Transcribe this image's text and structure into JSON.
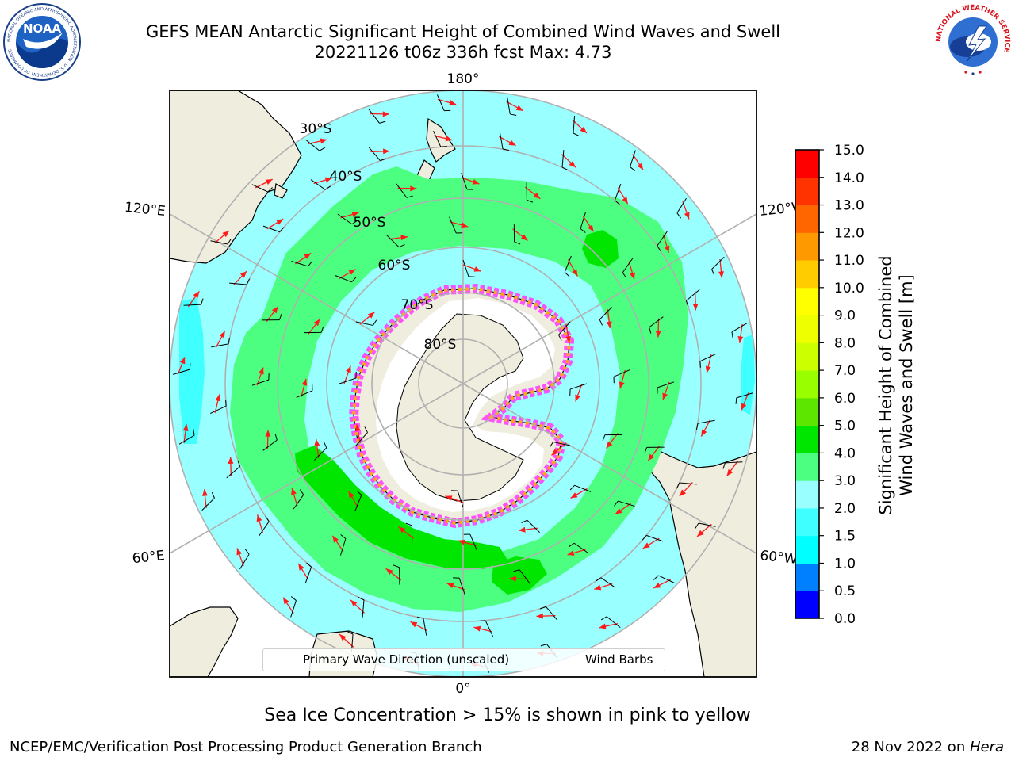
{
  "title": {
    "line1": "GEFS MEAN Antarctic Significant Height of Combined Wind Waves and Swell",
    "line2": "20221126 t06z 336h fcst   Max: 4.73"
  },
  "logos": {
    "left": {
      "text": "NOAA",
      "ring_text": "NATIONAL OCEANIC AND ATMOSPHERIC ADMINISTRATION · U.S. DEPARTMENT OF COMMERCE",
      "icon": "noaa-logo-icon"
    },
    "right": {
      "ring_text": "NATIONAL WEATHER SERVICE",
      "icon": "nws-logo-icon"
    }
  },
  "map": {
    "projection": "south-polar-stereographic",
    "longitude_labels": {
      "top": "180°",
      "bottom": "0°",
      "upper_left": "120°E",
      "upper_right": "120°W",
      "lower_left": "60°E",
      "lower_right": "60°W"
    },
    "latitude_labels": [
      "30°S",
      "40°S",
      "50°S",
      "60°S",
      "70°S",
      "80°S"
    ],
    "max_value": 4.73,
    "colors": {
      "land": "#efedde",
      "ocean_low": "#99ffff",
      "ocean_mid": "#4dff80",
      "ocean_high": "#00e600",
      "gridline": "#b0b0b0",
      "wave_arrow": "#ff1a1a",
      "wind_barb": "#000000",
      "sea_ice": "#ff40ff"
    }
  },
  "legend": {
    "items": [
      {
        "label": "Primary Wave Direction (unscaled)",
        "color": "#ff0000"
      },
      {
        "label": "Wind Barbs",
        "color": "#000000"
      }
    ]
  },
  "colorbar": {
    "title_line1": "Significant Height of Combined",
    "title_line2": "Wind Waves and Swell [m]",
    "ticks": [
      "0.0",
      "0.5",
      "1.0",
      "1.5",
      "2.0",
      "3.0",
      "4.0",
      "5.0",
      "6.0",
      "7.0",
      "8.0",
      "9.0",
      "10.0",
      "11.0",
      "12.0",
      "13.0",
      "14.0",
      "15.0"
    ],
    "colors": [
      "#0000ff",
      "#0080ff",
      "#00ffff",
      "#40ffff",
      "#99ffff",
      "#4dff80",
      "#00e600",
      "#5ce600",
      "#99ff00",
      "#ccff00",
      "#eeff00",
      "#ffff00",
      "#ffcc00",
      "#ff9900",
      "#ff6600",
      "#ff3300",
      "#ff0000"
    ]
  },
  "caption": "Sea Ice Concentration > 15% is shown in pink to yellow",
  "footer": {
    "left": "NCEP/EMC/Verification Post Processing Product Generation Branch",
    "right_prefix": "28 Nov 2022 on ",
    "right_italic": "Hera"
  }
}
